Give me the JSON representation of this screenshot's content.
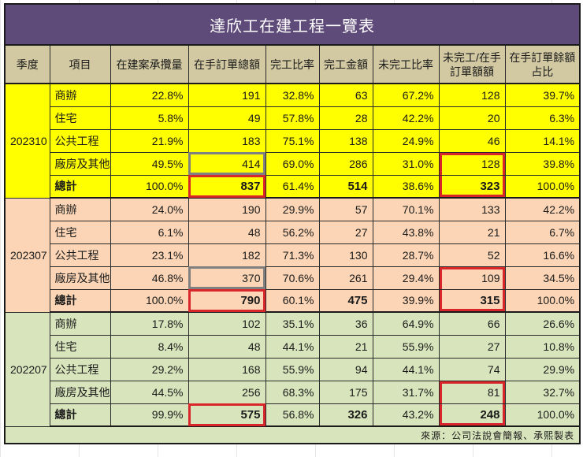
{
  "title": "達欣工在建工程一覽表",
  "headers": [
    "季度",
    "項目",
    "在建案承攬量",
    "在手訂單總額",
    "完工比率",
    "完工金額",
    "未完工比率",
    "未完工/在手訂單額額",
    "在手訂單餘額占比"
  ],
  "colors": {
    "title_bg": "#5f4b7a",
    "header_bg": "#d2c9a2",
    "group_202310": "#ffff00",
    "group_202307": "#fbd5b5",
    "group_202207": "#d8e4bc",
    "highlight_red": "#d9262a",
    "highlight_gray": "#808080"
  },
  "groups": [
    {
      "period": "202310",
      "rows": [
        {
          "item": "商辦",
          "share": "22.8%",
          "backlog": "191",
          "done_ratio": "32.8%",
          "done_amt": "63",
          "undone_ratio": "67.2%",
          "undone_amt": "128",
          "remain_share": "39.7%"
        },
        {
          "item": "住宅",
          "share": "5.8%",
          "backlog": "49",
          "done_ratio": "57.8%",
          "done_amt": "28",
          "undone_ratio": "42.2%",
          "undone_amt": "20",
          "remain_share": "6.3%"
        },
        {
          "item": "公共工程",
          "share": "21.9%",
          "backlog": "183",
          "done_ratio": "75.1%",
          "done_amt": "138",
          "undone_ratio": "24.9%",
          "undone_amt": "46",
          "remain_share": "14.1%"
        },
        {
          "item": "廠房及其他",
          "share": "49.5%",
          "backlog": "414",
          "done_ratio": "69.0%",
          "done_amt": "286",
          "undone_ratio": "31.0%",
          "undone_amt": "128",
          "remain_share": "39.8%"
        },
        {
          "item": "總計",
          "share": "100.0%",
          "backlog": "837",
          "done_ratio": "61.4%",
          "done_amt": "514",
          "undone_ratio": "38.6%",
          "undone_amt": "323",
          "remain_share": "100.0%"
        }
      ]
    },
    {
      "period": "202307",
      "rows": [
        {
          "item": "商辦",
          "share": "24.0%",
          "backlog": "190",
          "done_ratio": "29.9%",
          "done_amt": "57",
          "undone_ratio": "70.1%",
          "undone_amt": "133",
          "remain_share": "42.2%"
        },
        {
          "item": "住宅",
          "share": "6.1%",
          "backlog": "48",
          "done_ratio": "56.2%",
          "done_amt": "27",
          "undone_ratio": "43.8%",
          "undone_amt": "21",
          "remain_share": "6.7%"
        },
        {
          "item": "公共工程",
          "share": "23.1%",
          "backlog": "182",
          "done_ratio": "71.3%",
          "done_amt": "130",
          "undone_ratio": "28.7%",
          "undone_amt": "52",
          "remain_share": "16.6%"
        },
        {
          "item": "廠房及其他",
          "share": "46.8%",
          "backlog": "370",
          "done_ratio": "70.6%",
          "done_amt": "261",
          "undone_ratio": "29.4%",
          "undone_amt": "109",
          "remain_share": "34.5%"
        },
        {
          "item": "總計",
          "share": "100.0%",
          "backlog": "790",
          "done_ratio": "60.1%",
          "done_amt": "475",
          "undone_ratio": "39.9%",
          "undone_amt": "315",
          "remain_share": "100.0%"
        }
      ]
    },
    {
      "period": "202207",
      "rows": [
        {
          "item": "商辦",
          "share": "17.8%",
          "backlog": "102",
          "done_ratio": "35.1%",
          "done_amt": "36",
          "undone_ratio": "64.9%",
          "undone_amt": "66",
          "remain_share": "26.6%"
        },
        {
          "item": "住宅",
          "share": "8.4%",
          "backlog": "48",
          "done_ratio": "44.1%",
          "done_amt": "21",
          "undone_ratio": "55.9%",
          "undone_amt": "27",
          "remain_share": "10.8%"
        },
        {
          "item": "公共工程",
          "share": "29.2%",
          "backlog": "168",
          "done_ratio": "55.9%",
          "done_amt": "94",
          "undone_ratio": "44.1%",
          "undone_amt": "74",
          "remain_share": "29.9%"
        },
        {
          "item": "廠房及其他",
          "share": "44.5%",
          "backlog": "256",
          "done_ratio": "68.3%",
          "done_amt": "175",
          "undone_ratio": "31.7%",
          "undone_amt": "81",
          "remain_share": "32.7%"
        },
        {
          "item": "總計",
          "share": "99.9%",
          "backlog": "575",
          "done_ratio": "56.8%",
          "done_amt": "326",
          "undone_ratio": "43.2%",
          "undone_amt": "248",
          "remain_share": "100.0%"
        }
      ]
    }
  ],
  "source": "來源：公司法說會簡報、承熙製表"
}
